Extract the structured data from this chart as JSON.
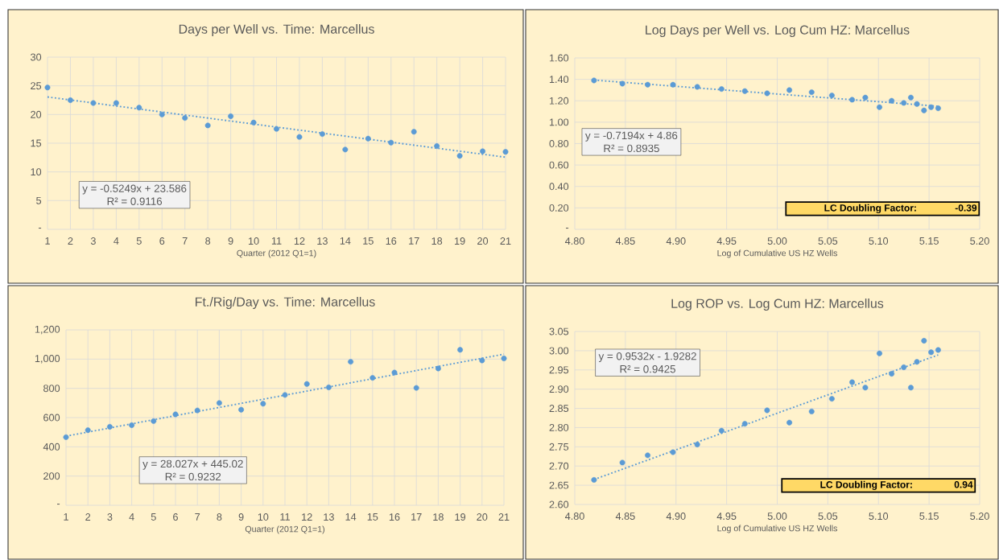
{
  "chart_data": [
    {
      "type": "scatter",
      "title": "Days per Well vs. Time: Marcellus",
      "xlabel": "Quarter (2012 Q1=1)",
      "x": [
        1,
        2,
        3,
        4,
        5,
        6,
        7,
        8,
        9,
        10,
        11,
        12,
        13,
        14,
        15,
        16,
        17,
        18,
        19,
        20,
        21
      ],
      "xlim": [
        1,
        21
      ],
      "xticks": [
        1,
        2,
        3,
        4,
        5,
        6,
        7,
        8,
        9,
        10,
        11,
        12,
        13,
        14,
        15,
        16,
        17,
        18,
        19,
        20,
        21
      ],
      "ylim": [
        0,
        30
      ],
      "yticks": [
        {
          "value": 0,
          "label": "-"
        },
        5,
        10,
        15,
        20,
        25,
        30
      ],
      "grid": true,
      "marker": "circle",
      "series": [
        {
          "color": "#5b9bd5",
          "values": [
            24.7,
            22.5,
            22.0,
            22.0,
            21.2,
            20.0,
            19.4,
            18.1,
            19.7,
            18.6,
            17.5,
            16.1,
            16.6,
            13.9,
            15.8,
            15.1,
            17.0,
            14.5,
            12.8,
            13.6,
            13.5
          ]
        },
        {
          "type": "line",
          "color": "#5b9bd5",
          "x": [
            1,
            21
          ],
          "values": [
            23.06,
            12.56
          ],
          "line_style": "dotted",
          "marker": "none"
        }
      ],
      "annotations": [
        "y = -0.5249x + 23.586",
        "R² = 0.9116"
      ]
    },
    {
      "type": "scatter",
      "title": "Log Days per Well vs. Log Cum HZ: Marcellus",
      "xlabel": "Log of Cumulative US HZ Wells",
      "x": [
        4.819,
        4.847,
        4.872,
        4.897,
        4.921,
        4.945,
        4.968,
        4.99,
        5.012,
        5.034,
        5.054,
        5.074,
        5.087,
        5.101,
        5.113,
        5.125,
        5.132,
        5.138,
        5.145,
        5.152,
        5.159
      ],
      "xlim": [
        4.8,
        5.2
      ],
      "xticks": [
        {
          "value": 4.8,
          "label": "4.80"
        },
        {
          "value": 4.85,
          "label": "4.85"
        },
        {
          "value": 4.9,
          "label": "4.90"
        },
        {
          "value": 4.95,
          "label": "4.95"
        },
        {
          "value": 5.0,
          "label": "5.00"
        },
        {
          "value": 5.05,
          "label": "5.05"
        },
        {
          "value": 5.1,
          "label": "5.10"
        },
        {
          "value": 5.15,
          "label": "5.15"
        },
        {
          "value": 5.2,
          "label": "5.20"
        }
      ],
      "ylim": [
        0,
        1.6
      ],
      "yticks": [
        {
          "value": 0,
          "label": "-"
        },
        {
          "value": 0.2,
          "label": "0.20"
        },
        {
          "value": 0.4,
          "label": "0.40"
        },
        {
          "value": 0.6,
          "label": "0.60"
        },
        {
          "value": 0.8,
          "label": "0.80"
        },
        {
          "value": 1.0,
          "label": "1.00"
        },
        {
          "value": 1.2,
          "label": "1.20"
        },
        {
          "value": 1.4,
          "label": "1.40"
        },
        {
          "value": 1.6,
          "label": "1.60"
        }
      ],
      "grid": true,
      "marker": "circle",
      "series": [
        {
          "color": "#5b9bd5",
          "values": [
            1.39,
            1.36,
            1.35,
            1.35,
            1.33,
            1.31,
            1.29,
            1.27,
            1.3,
            1.28,
            1.25,
            1.21,
            1.23,
            1.14,
            1.2,
            1.18,
            1.23,
            1.17,
            1.11,
            1.14,
            1.13
          ]
        },
        {
          "type": "line",
          "color": "#5b9bd5",
          "x": [
            4.819,
            5.159
          ],
          "values": [
            1.393,
            1.149
          ],
          "line_style": "dotted",
          "marker": "none"
        }
      ],
      "annotations": [
        "y = -0.7194x + 4.86",
        "R² = 0.8935",
        "LC Doubling Factor:",
        "-0.39"
      ]
    },
    {
      "type": "scatter",
      "title": "Ft./Rig/Day vs. Time: Marcellus",
      "xlabel": "Quarter (2012 Q1=1)",
      "x": [
        1,
        2,
        3,
        4,
        5,
        6,
        7,
        8,
        9,
        10,
        11,
        12,
        13,
        14,
        15,
        16,
        17,
        18,
        19,
        20,
        21
      ],
      "xlim": [
        1,
        21
      ],
      "xticks": [
        1,
        2,
        3,
        4,
        5,
        6,
        7,
        8,
        9,
        10,
        11,
        12,
        13,
        14,
        15,
        16,
        17,
        18,
        19,
        20,
        21
      ],
      "ylim": [
        0,
        1200
      ],
      "yticks": [
        {
          "value": 0,
          "label": "-"
        },
        200,
        400,
        600,
        800,
        {
          "value": 1000,
          "label": "1,000"
        },
        {
          "value": 1200,
          "label": "1,200"
        }
      ],
      "grid": true,
      "marker": "circle",
      "series": [
        {
          "color": "#5b9bd5",
          "values": [
            466,
            514,
            537,
            548,
            576,
            622,
            649,
            700,
            654,
            695,
            755,
            830,
            807,
            982,
            872,
            908,
            803,
            936,
            1064,
            991,
            1005
          ]
        },
        {
          "type": "line",
          "color": "#5b9bd5",
          "x": [
            1,
            21
          ],
          "values": [
            473,
            1034
          ],
          "line_style": "dotted",
          "marker": "none"
        }
      ],
      "annotations": [
        "y = 28.027x + 445.02",
        "R² = 0.9232"
      ]
    },
    {
      "type": "scatter",
      "title": "Log ROP vs. Log Cum HZ: Marcellus",
      "xlabel": "Log of Cumulative US HZ Wells",
      "x": [
        4.819,
        4.847,
        4.872,
        4.897,
        4.921,
        4.945,
        4.968,
        4.99,
        5.012,
        5.034,
        5.054,
        5.074,
        5.087,
        5.101,
        5.113,
        5.125,
        5.132,
        5.138,
        5.145,
        5.152,
        5.159
      ],
      "xlim": [
        4.8,
        5.2
      ],
      "xticks": [
        {
          "value": 4.8,
          "label": "4.80"
        },
        {
          "value": 4.85,
          "label": "4.85"
        },
        {
          "value": 4.9,
          "label": "4.90"
        },
        {
          "value": 4.95,
          "label": "4.95"
        },
        {
          "value": 5.0,
          "label": "5.00"
        },
        {
          "value": 5.05,
          "label": "5.05"
        },
        {
          "value": 5.1,
          "label": "5.10"
        },
        {
          "value": 5.15,
          "label": "5.15"
        },
        {
          "value": 5.2,
          "label": "5.20"
        }
      ],
      "ylim": [
        2.6,
        3.05
      ],
      "yticks": [
        {
          "value": 2.6,
          "label": "2.60"
        },
        2.65,
        {
          "value": 2.7,
          "label": "2.70"
        },
        2.75,
        {
          "value": 2.8,
          "label": "2.80"
        },
        2.85,
        {
          "value": 2.9,
          "label": "2.90"
        },
        2.95,
        {
          "value": 3.0,
          "label": "3.00"
        },
        3.05
      ],
      "grid": true,
      "marker": "circle",
      "series": [
        {
          "color": "#5b9bd5",
          "values": [
            2.664,
            2.709,
            2.728,
            2.736,
            2.756,
            2.792,
            2.81,
            2.845,
            2.813,
            2.842,
            2.875,
            2.918,
            2.904,
            2.993,
            2.94,
            2.957,
            2.904,
            2.971,
            3.026,
            2.996,
            3.002
          ]
        },
        {
          "type": "line",
          "color": "#5b9bd5",
          "x": [
            4.819,
            5.159
          ],
          "values": [
            2.665,
            2.989
          ],
          "line_style": "dotted",
          "marker": "none"
        }
      ],
      "annotations": [
        "y = 0.9532x - 1.9282",
        "R² = 0.9425",
        "LC Doubling Factor:",
        "0.94"
      ]
    }
  ]
}
